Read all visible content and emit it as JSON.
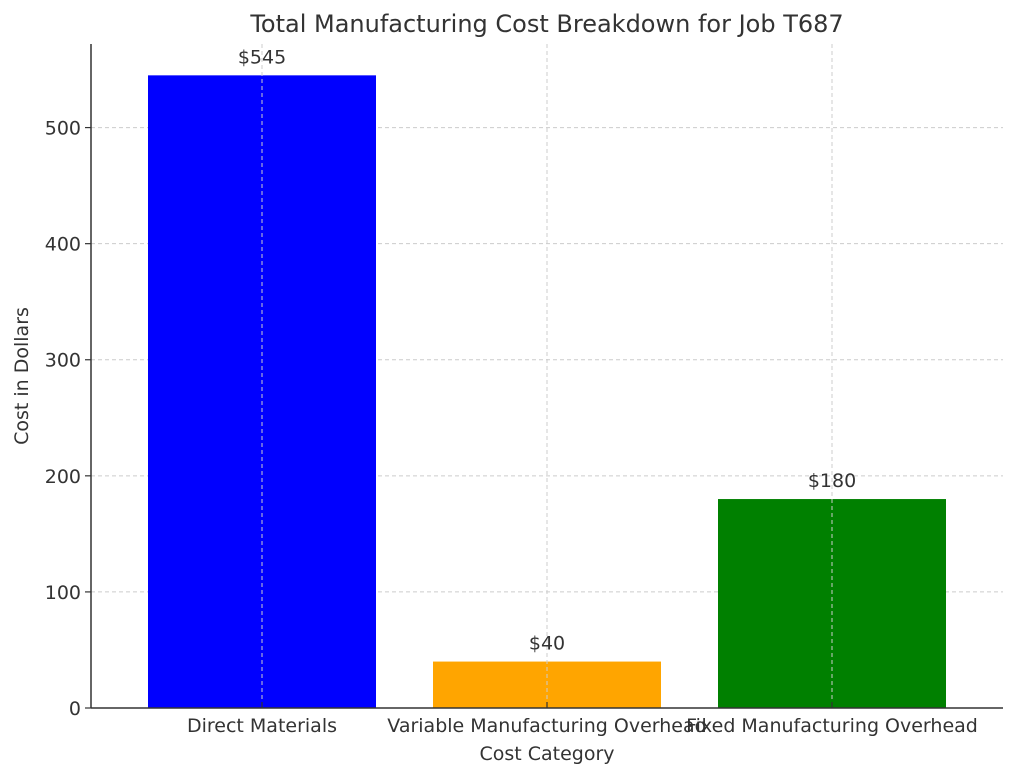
{
  "chart_data": {
    "type": "bar",
    "title": "Total Manufacturing Cost Breakdown for Job T687",
    "xlabel": "Cost Category",
    "ylabel": "Cost in Dollars",
    "categories": [
      "Direct Materials",
      "Variable Manufacturing Overhead",
      "Fixed Manufacturing Overhead"
    ],
    "values": [
      545,
      40,
      180
    ],
    "data_labels": [
      "$545",
      "$40",
      "$180"
    ],
    "colors": [
      "#0000ff",
      "#ffa500",
      "#008000"
    ],
    "ylim": [
      0,
      572
    ],
    "yticks": [
      0,
      100,
      200,
      300,
      400,
      500
    ],
    "ytick_labels": [
      "0",
      "100",
      "200",
      "300",
      "400",
      "500"
    ],
    "grid": true
  }
}
